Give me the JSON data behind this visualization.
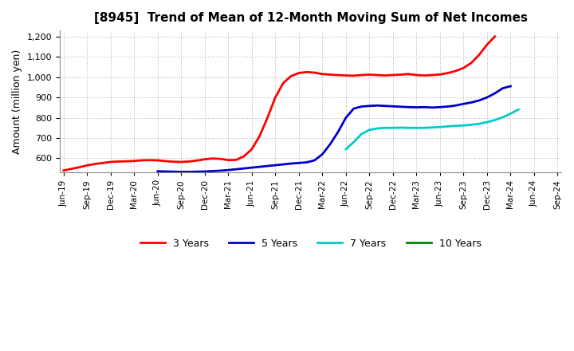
{
  "title": "[8945]  Trend of Mean of 12-Month Moving Sum of Net Incomes",
  "ylabel": "Amount (million yen)",
  "ylim": [
    530,
    1230
  ],
  "yticks": [
    600,
    700,
    800,
    900,
    1000,
    1100,
    1200
  ],
  "background_color": "#ffffff",
  "grid_color": "#aaaaaa",
  "series": {
    "3 Years": {
      "color": "#ff0000",
      "data": [
        540,
        548,
        556,
        565,
        572,
        577,
        582,
        584,
        585,
        587,
        590,
        591,
        590,
        586,
        583,
        582,
        584,
        589,
        595,
        599,
        597,
        591,
        592,
        610,
        645,
        710,
        800,
        900,
        970,
        1005,
        1020,
        1025,
        1022,
        1015,
        1012,
        1010,
        1008,
        1007,
        1010,
        1012,
        1010,
        1008,
        1010,
        1012,
        1015,
        1010,
        1008,
        1010,
        1013,
        1020,
        1030,
        1045,
        1070,
        1110,
        1160,
        1200
      ]
    },
    "5 Years": {
      "color": "#0000cc",
      "data": [
        536,
        535,
        534,
        533,
        533,
        534,
        535,
        537,
        539,
        542,
        546,
        550,
        554,
        558,
        562,
        566,
        570,
        574,
        577,
        580,
        590,
        620,
        670,
        730,
        800,
        845,
        855,
        858,
        860,
        858,
        856,
        854,
        852,
        851,
        852,
        850,
        852,
        855,
        860,
        868,
        875,
        885,
        900,
        920,
        945,
        955
      ]
    },
    "7 Years": {
      "color": "#00cccc",
      "data": [
        645,
        680,
        720,
        740,
        747,
        750,
        750,
        751,
        750,
        750,
        750,
        752,
        754,
        757,
        760,
        762,
        765,
        770,
        778,
        788,
        802,
        820,
        840
      ]
    },
    "10 Years": {
      "color": "#008800",
      "data": []
    }
  },
  "x_labels": [
    "Jun-19",
    "Sep-19",
    "Dec-19",
    "Mar-20",
    "Jun-20",
    "Sep-20",
    "Dec-20",
    "Mar-21",
    "Jun-21",
    "Sep-21",
    "Dec-21",
    "Mar-22",
    "Jun-22",
    "Sep-22",
    "Dec-22",
    "Mar-23",
    "Jun-23",
    "Sep-23",
    "Dec-23",
    "Mar-24",
    "Jun-24",
    "Sep-24"
  ],
  "legend_labels": [
    "3 Years",
    "5 Years",
    "7 Years",
    "10 Years"
  ],
  "legend_colors": [
    "#ff0000",
    "#0000cc",
    "#00cccc",
    "#008800"
  ]
}
